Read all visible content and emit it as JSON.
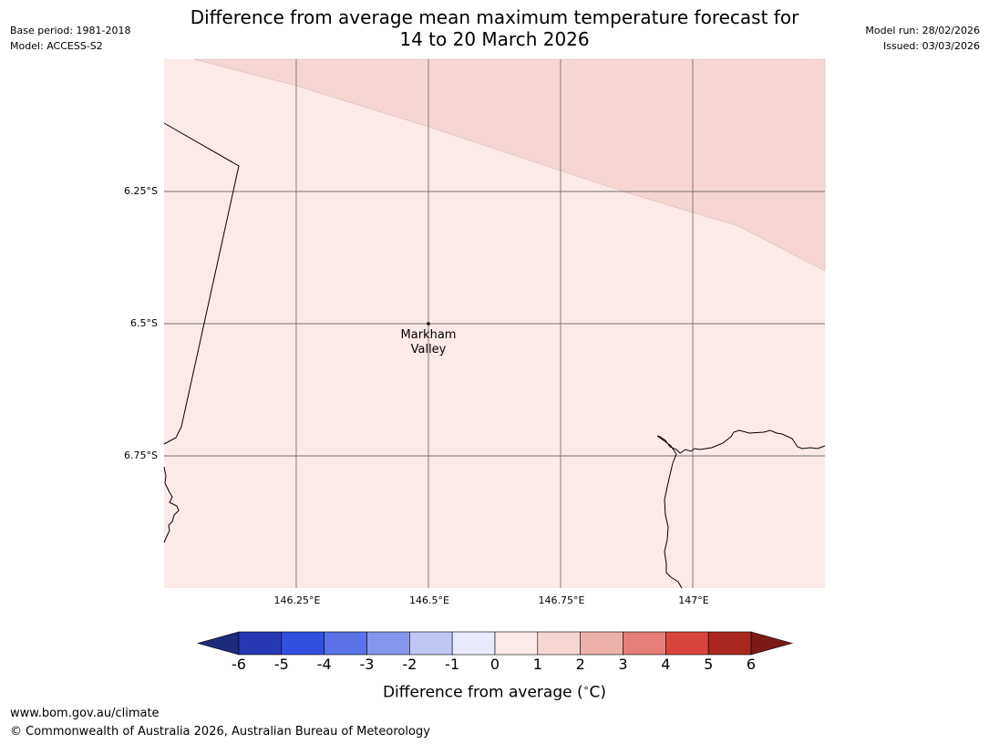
{
  "header": {
    "base_period": "Base period: 1981-2018",
    "model": "Model: ACCESS-S2",
    "title_line1": "Difference from average mean maximum temperature forecast for",
    "title_line2": "14 to 20 March 2026",
    "model_run": "Model run: 28/02/2026",
    "issued": "Issued: 03/03/2026"
  },
  "map": {
    "lat_labels": [
      "6.25°S",
      "6.5°S",
      "6.75°S"
    ],
    "lon_labels": [
      "146.25°E",
      "146.5°E",
      "146.75°E",
      "147°E"
    ],
    "place": {
      "name_line1": "Markham",
      "name_line2": "Valley",
      "lat": -6.5,
      "lon": 146.5
    },
    "fill_colors": {
      "band_0_1": "#fbeae8",
      "band_1_2": "#f6d6d3"
    },
    "line_color": "#000000",
    "grid_color": "#555555"
  },
  "colorbar": {
    "ticks": [
      "-6",
      "-5",
      "-4",
      "-3",
      "-2",
      "-1",
      "0",
      "1",
      "2",
      "3",
      "4",
      "5",
      "6"
    ],
    "colors": [
      "#1e2a7a",
      "#2639b5",
      "#3050e0",
      "#5a72e6",
      "#8696ec",
      "#bfc6f4",
      "#e9eafc",
      "#fbeae8",
      "#f6d6d3",
      "#eeb0ab",
      "#e57f78",
      "#d9453b",
      "#a82820",
      "#7a1b17"
    ],
    "label": "Difference from average ($^\\circ$C)",
    "label_display": "Difference from average (",
    "label_unit": "C)"
  },
  "footer": {
    "url": "www.bom.gov.au/climate",
    "copyright": "© Commonwealth of Australia 2026, Australian Bureau of Meteorology"
  }
}
